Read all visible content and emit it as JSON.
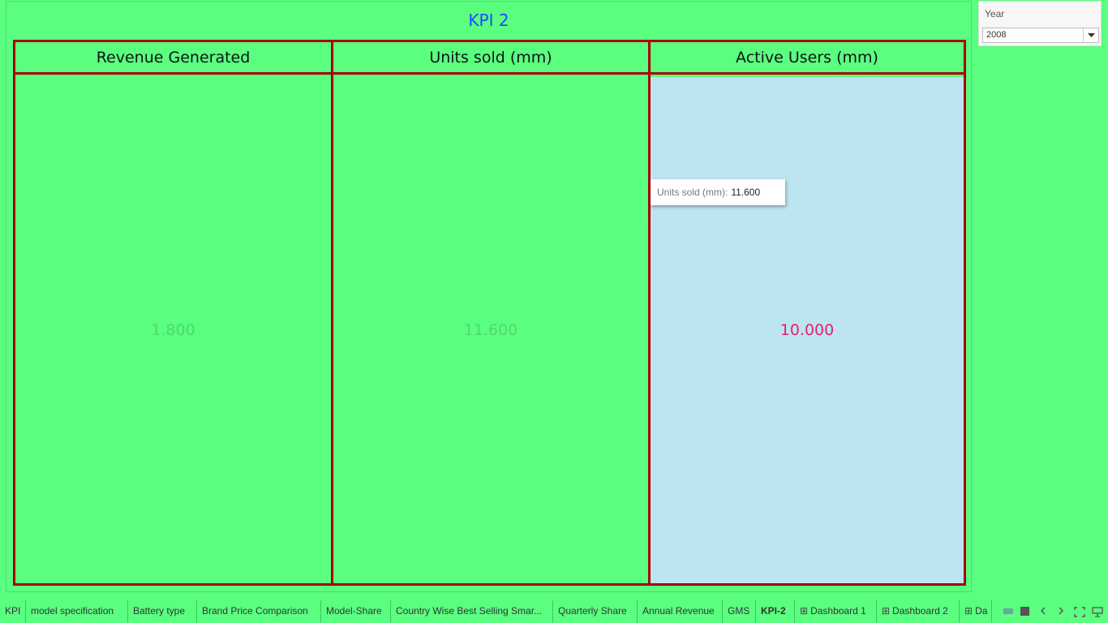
{
  "dashboard": {
    "title": "KPI 2",
    "columns": [
      {
        "header": "Revenue Generated",
        "value": "1.800",
        "bg": "#5aff80",
        "value_color": "#4fd86e"
      },
      {
        "header": "Units sold (mm)",
        "value": "11.600",
        "bg": "#5aff80",
        "value_color": "#4fd86e"
      },
      {
        "header": "Active Users (mm)",
        "value": "10.000",
        "bg": "#bde5f1",
        "value_color": "#e8206e"
      }
    ],
    "tooltip": {
      "label": "Units sold (mm):",
      "value": "11.600"
    }
  },
  "filter": {
    "label": "Year",
    "selected": "2008"
  },
  "tabs": [
    {
      "label": "KPI",
      "icon": ""
    },
    {
      "label": "model specification",
      "icon": ""
    },
    {
      "label": "Battery type",
      "icon": ""
    },
    {
      "label": "Brand Price Comparison",
      "icon": ""
    },
    {
      "label": "Model-Share",
      "icon": ""
    },
    {
      "label": "Country Wise Best Selling Smar...",
      "icon": ""
    },
    {
      "label": "Quarterly Share",
      "icon": ""
    },
    {
      "label": "Annual Revenue",
      "icon": ""
    },
    {
      "label": "GMS",
      "icon": ""
    },
    {
      "label": "KPI-2",
      "icon": "",
      "active": true
    },
    {
      "label": "Dashboard 1",
      "icon": "grid-icon"
    },
    {
      "label": "Dashboard 2",
      "icon": "grid-icon"
    },
    {
      "label": "Da",
      "icon": "grid-icon"
    }
  ],
  "colors": {
    "background": "#5aff80",
    "border": "#a80008",
    "title": "#1a4bff"
  }
}
